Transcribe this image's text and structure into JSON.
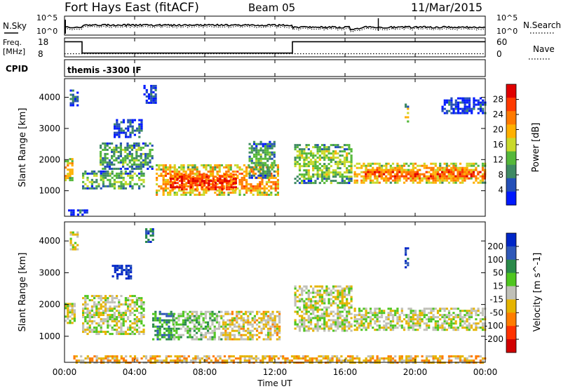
{
  "header": {
    "station": "Fort Hays East (fitACF)",
    "beam": "Beam 05",
    "date": "11/Mar/2015"
  },
  "top_panels": {
    "nsky_label": "N.Sky",
    "nsky_ticks": [
      "10^5",
      "10^0"
    ],
    "nsearch_label": "N.Search",
    "nsearch_ticks": [
      "10^5",
      "10^0"
    ],
    "freq_label": "Freq.",
    "freq_unit": "[MHz]",
    "freq_ticks": [
      "18",
      "8"
    ],
    "nave_label": "Nave",
    "nave_ticks": [
      "60",
      "0"
    ],
    "cpid_label": "CPID",
    "cpid_text": "themis -3300 IF"
  },
  "colors": {
    "power": [
      "#0019ff",
      "#244fb8",
      "#3f8a63",
      "#55b83a",
      "#c9d92b",
      "#ffb000",
      "#ff7a00",
      "#ff3a00",
      "#e00000"
    ],
    "velocity": [
      "#0026c7",
      "#2f58b8",
      "#2a8a4a",
      "#4fc61f",
      "#c0c0b8",
      "#e5b400",
      "#ff7d00",
      "#ff3200",
      "#d10000"
    ]
  },
  "chart_data": [
    {
      "type": "heatmap",
      "quantity": "Power",
      "ylabel": "Slant Range [km]",
      "y_ticks": [
        "4000",
        "3000",
        "2000",
        "1000"
      ],
      "ylim": [
        180,
        4600
      ],
      "x_ticks": [
        "00:00",
        "04:00",
        "08:00",
        "12:00",
        "16:00",
        "20:00",
        "00:00"
      ],
      "xlim_hours": [
        0,
        24
      ],
      "colorbar_label": "Power [dB]",
      "colorbar_ticks": [
        "28",
        "24",
        "20",
        "16",
        "12",
        "8",
        "4"
      ],
      "colorbar_range": [
        0,
        30
      ],
      "regions": [
        {
          "t0": 0.0,
          "t1": 0.45,
          "r0": 1350,
          "r1": 2050,
          "value": 18
        },
        {
          "t0": 0.3,
          "t1": 0.7,
          "r0": 3750,
          "r1": 4250,
          "value": 6
        },
        {
          "t0": 0.2,
          "t1": 1.3,
          "r0": 250,
          "r1": 400,
          "value": 6
        },
        {
          "t0": 1.0,
          "t1": 4.5,
          "r0": 1100,
          "r1": 1650,
          "value": 12
        },
        {
          "t0": 2.0,
          "t1": 5.0,
          "r0": 1700,
          "r1": 2550,
          "value": 10
        },
        {
          "t0": 2.8,
          "t1": 4.4,
          "r0": 2700,
          "r1": 3300,
          "value": 5
        },
        {
          "t0": 4.5,
          "t1": 5.2,
          "r0": 3800,
          "r1": 4400,
          "value": 4
        },
        {
          "t0": 5.2,
          "t1": 12.2,
          "r0": 900,
          "r1": 1850,
          "value": 20
        },
        {
          "t0": 6.0,
          "t1": 9.8,
          "r0": 1050,
          "r1": 1550,
          "value": 27
        },
        {
          "t0": 10.5,
          "t1": 12.0,
          "r0": 1400,
          "r1": 2600,
          "value": 10
        },
        {
          "t0": 13.1,
          "t1": 16.3,
          "r0": 1250,
          "r1": 2500,
          "value": 13
        },
        {
          "t0": 16.5,
          "t1": 24.0,
          "r0": 1250,
          "r1": 1900,
          "value": 19
        },
        {
          "t0": 17.0,
          "t1": 24.0,
          "r0": 1400,
          "r1": 1700,
          "value": 24
        },
        {
          "t0": 21.5,
          "t1": 24.0,
          "r0": 3500,
          "r1": 4000,
          "value": 4
        },
        {
          "t0": 19.4,
          "t1": 19.6,
          "r0": 3200,
          "r1": 3800,
          "value": 16
        }
      ]
    },
    {
      "type": "heatmap",
      "quantity": "Velocity",
      "ylabel": "Slant Range [km]",
      "y_ticks": [
        "4000",
        "3000",
        "2000",
        "1000"
      ],
      "ylim": [
        180,
        4600
      ],
      "x_ticks": [
        "00:00",
        "04:00",
        "08:00",
        "12:00",
        "16:00",
        "20:00",
        "00:00"
      ],
      "xlim_hours": [
        0,
        24
      ],
      "xlabel": "Time UT",
      "colorbar_label": "Velocity [m s^-1]",
      "colorbar_ticks": [
        "200",
        "100",
        "50",
        "15",
        "-15",
        "-50",
        "-100",
        "-200"
      ],
      "colorbar_range": [
        -250,
        250
      ],
      "regions": [
        {
          "t0": 0.0,
          "t1": 0.6,
          "r0": 1400,
          "r1": 2050,
          "value": 0
        },
        {
          "t0": 0.3,
          "t1": 0.7,
          "r0": 3750,
          "r1": 4300,
          "value": 0
        },
        {
          "t0": 1.0,
          "t1": 4.5,
          "r0": 1100,
          "r1": 2300,
          "value": 0
        },
        {
          "t0": 2.7,
          "t1": 3.8,
          "r0": 2800,
          "r1": 3250,
          "value": 230
        },
        {
          "t0": 4.6,
          "t1": 5.0,
          "r0": 4000,
          "r1": 4400,
          "value": 150
        },
        {
          "t0": 5.0,
          "t1": 6.2,
          "r0": 900,
          "r1": 1800,
          "value": 100
        },
        {
          "t0": 6.2,
          "t1": 9.0,
          "r0": 900,
          "r1": 1800,
          "value": 40
        },
        {
          "t0": 9.0,
          "t1": 12.2,
          "r0": 900,
          "r1": 1800,
          "value": -30
        },
        {
          "t0": 13.1,
          "t1": 16.3,
          "r0": 1200,
          "r1": 2600,
          "value": 0
        },
        {
          "t0": 16.5,
          "t1": 24.0,
          "r0": 1200,
          "r1": 1900,
          "value": 0
        },
        {
          "t0": 19.4,
          "t1": 19.6,
          "r0": 3200,
          "r1": 3800,
          "value": 200
        },
        {
          "t0": 0.5,
          "t1": 24.0,
          "r0": 200,
          "r1": 400,
          "value": -60
        }
      ]
    }
  ],
  "top_series": {
    "freq_mhz_segments": [
      {
        "t0": 0.0,
        "t1": 1.0,
        "value": 16
      },
      {
        "t0": 1.0,
        "t1": 13.0,
        "value": 10
      },
      {
        "t0": 13.0,
        "t1": 24.0,
        "value": 16
      }
    ],
    "nave_level": 10
  }
}
